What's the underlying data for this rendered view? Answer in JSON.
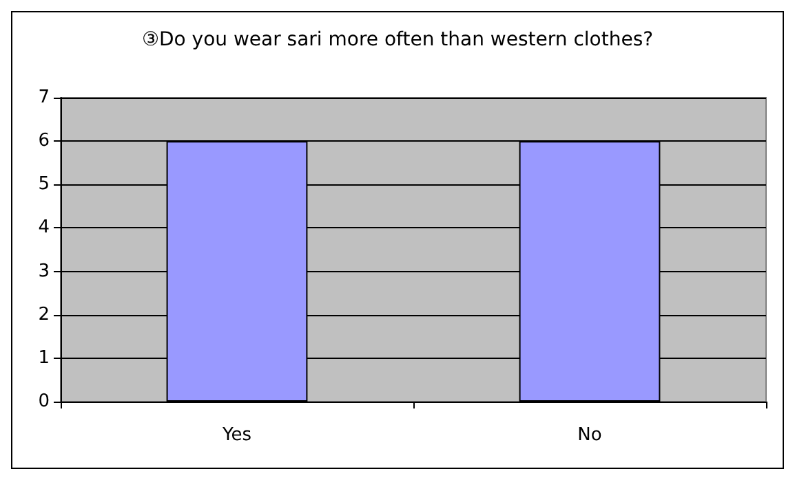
{
  "chart_data": {
    "type": "bar",
    "title": "③Do you wear sari more often than western clothes?",
    "categories": [
      "Yes",
      "No"
    ],
    "values": [
      6,
      6
    ],
    "color": "#9999ff",
    "ylim": [
      0,
      7
    ],
    "yticks": [
      0,
      1,
      2,
      3,
      4,
      5,
      6,
      7
    ],
    "grid": "y"
  }
}
